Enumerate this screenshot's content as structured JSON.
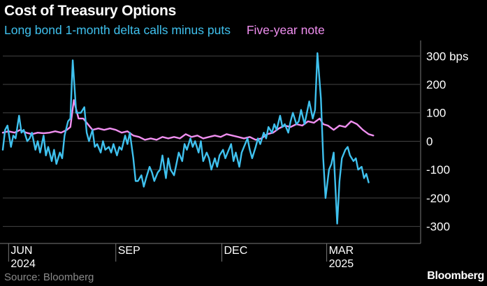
{
  "title": "Cost of Treasury Options",
  "source": "Source: Bloomberg",
  "brand": "Bloomberg",
  "colors": {
    "background": "#000000",
    "long_bond": "#3fc1ee",
    "five_year": "#f08ff0",
    "grid": "#444444",
    "text": "#ffffff",
    "muted": "#8a8a8a"
  },
  "chart_data": {
    "type": "line",
    "title": "Cost of Treasury Options",
    "xlabel": "",
    "ylabel": "",
    "unit": "bps",
    "xlim": [
      "2024-05-27",
      "2025-05-20"
    ],
    "ylim": [
      -350,
      335
    ],
    "yticks": [
      300,
      200,
      100,
      0,
      -100,
      -200,
      -300
    ],
    "ytick_labels": [
      "300 bps",
      "200",
      "100",
      "0",
      "-100",
      "-200",
      "-300"
    ],
    "xticks": [
      {
        "date": "2024-06-01",
        "label": "JUN",
        "sublabel": "2024"
      },
      {
        "date": "2024-09-01",
        "label": "SEP",
        "sublabel": ""
      },
      {
        "date": "2024-12-01",
        "label": "DEC",
        "sublabel": ""
      },
      {
        "date": "2025-03-01",
        "label": "MAR",
        "sublabel": "2025"
      }
    ],
    "grid": "horizontal",
    "legend": "top",
    "series": [
      {
        "name": "Long bond 1-month delta calls minus puts",
        "color": "#3fc1ee",
        "points": [
          [
            "2024-05-27",
            -30
          ],
          [
            "2024-05-29",
            40
          ],
          [
            "2024-05-31",
            55
          ],
          [
            "2024-06-03",
            -20
          ],
          [
            "2024-06-05",
            20
          ],
          [
            "2024-06-07",
            10
          ],
          [
            "2024-06-10",
            90
          ],
          [
            "2024-06-12",
            30
          ],
          [
            "2024-06-14",
            40
          ],
          [
            "2024-06-17",
            0
          ],
          [
            "2024-06-19",
            10
          ],
          [
            "2024-06-21",
            30
          ],
          [
            "2024-06-24",
            -30
          ],
          [
            "2024-06-26",
            0
          ],
          [
            "2024-06-28",
            -40
          ],
          [
            "2024-07-01",
            20
          ],
          [
            "2024-07-03",
            -50
          ],
          [
            "2024-07-05",
            -20
          ],
          [
            "2024-07-08",
            -70
          ],
          [
            "2024-07-10",
            -30
          ],
          [
            "2024-07-12",
            -80
          ],
          [
            "2024-07-15",
            -40
          ],
          [
            "2024-07-17",
            -60
          ],
          [
            "2024-07-19",
            20
          ],
          [
            "2024-07-22",
            70
          ],
          [
            "2024-07-24",
            80
          ],
          [
            "2024-07-26",
            285
          ],
          [
            "2024-07-29",
            100
          ],
          [
            "2024-07-31",
            100
          ],
          [
            "2024-08-02",
            100
          ],
          [
            "2024-08-05",
            120
          ],
          [
            "2024-08-07",
            30
          ],
          [
            "2024-08-09",
            0
          ],
          [
            "2024-08-12",
            40
          ],
          [
            "2024-08-14",
            -20
          ],
          [
            "2024-08-16",
            -10
          ],
          [
            "2024-08-19",
            -40
          ],
          [
            "2024-08-21",
            0
          ],
          [
            "2024-08-23",
            -30
          ],
          [
            "2024-08-26",
            -20
          ],
          [
            "2024-08-28",
            -40
          ],
          [
            "2024-08-30",
            -10
          ],
          [
            "2024-09-02",
            -50
          ],
          [
            "2024-09-04",
            -20
          ],
          [
            "2024-09-06",
            -30
          ],
          [
            "2024-09-09",
            20
          ],
          [
            "2024-09-11",
            -10
          ],
          [
            "2024-09-13",
            30
          ],
          [
            "2024-09-16",
            -60
          ],
          [
            "2024-09-18",
            -140
          ],
          [
            "2024-09-20",
            -140
          ],
          [
            "2024-09-23",
            -120
          ],
          [
            "2024-09-25",
            -160
          ],
          [
            "2024-09-27",
            -130
          ],
          [
            "2024-09-30",
            -90
          ],
          [
            "2024-10-02",
            -110
          ],
          [
            "2024-10-04",
            -140
          ],
          [
            "2024-10-07",
            -110
          ],
          [
            "2024-10-09",
            -100
          ],
          [
            "2024-10-11",
            -50
          ],
          [
            "2024-10-14",
            -130
          ],
          [
            "2024-10-16",
            -60
          ],
          [
            "2024-10-18",
            -100
          ],
          [
            "2024-10-21",
            -120
          ],
          [
            "2024-10-23",
            -80
          ],
          [
            "2024-10-25",
            -40
          ],
          [
            "2024-10-28",
            -70
          ],
          [
            "2024-10-30",
            -10
          ],
          [
            "2024-11-01",
            -30
          ],
          [
            "2024-11-04",
            10
          ],
          [
            "2024-11-06",
            -20
          ],
          [
            "2024-11-08",
            0
          ],
          [
            "2024-11-11",
            -40
          ],
          [
            "2024-11-13",
            0
          ],
          [
            "2024-11-15",
            -70
          ],
          [
            "2024-11-18",
            -40
          ],
          [
            "2024-11-20",
            -60
          ],
          [
            "2024-11-22",
            -100
          ],
          [
            "2024-11-25",
            -60
          ],
          [
            "2024-11-27",
            -90
          ],
          [
            "2024-11-29",
            -50
          ],
          [
            "2024-12-02",
            -30
          ],
          [
            "2024-12-04",
            -60
          ],
          [
            "2024-12-06",
            -40
          ],
          [
            "2024-12-09",
            -10
          ],
          [
            "2024-12-11",
            -70
          ],
          [
            "2024-12-13",
            -40
          ],
          [
            "2024-12-16",
            -90
          ],
          [
            "2024-12-18",
            -40
          ],
          [
            "2024-12-20",
            -20
          ],
          [
            "2024-12-23",
            10
          ],
          [
            "2024-12-25",
            -30
          ],
          [
            "2024-12-27",
            -60
          ],
          [
            "2024-12-30",
            -20
          ],
          [
            "2025-01-01",
            10
          ],
          [
            "2025-01-03",
            -10
          ],
          [
            "2025-01-06",
            30
          ],
          [
            "2025-01-08",
            10
          ],
          [
            "2025-01-10",
            50
          ],
          [
            "2025-01-13",
            30
          ],
          [
            "2025-01-15",
            60
          ],
          [
            "2025-01-17",
            40
          ],
          [
            "2025-01-20",
            90
          ],
          [
            "2025-01-22",
            50
          ],
          [
            "2025-01-24",
            60
          ],
          [
            "2025-01-27",
            30
          ],
          [
            "2025-01-29",
            70
          ],
          [
            "2025-01-31",
            100
          ],
          [
            "2025-02-03",
            60
          ],
          [
            "2025-02-05",
            70
          ],
          [
            "2025-02-07",
            110
          ],
          [
            "2025-02-10",
            60
          ],
          [
            "2025-02-12",
            100
          ],
          [
            "2025-02-14",
            140
          ],
          [
            "2025-02-17",
            80
          ],
          [
            "2025-02-19",
            110
          ],
          [
            "2025-02-21",
            310
          ],
          [
            "2025-02-24",
            150
          ],
          [
            "2025-02-26",
            -60
          ],
          [
            "2025-02-28",
            -200
          ],
          [
            "2025-03-03",
            -100
          ],
          [
            "2025-03-05",
            -80
          ],
          [
            "2025-03-07",
            -40
          ],
          [
            "2025-03-10",
            -290
          ],
          [
            "2025-03-12",
            -140
          ],
          [
            "2025-03-14",
            -60
          ],
          [
            "2025-03-17",
            -30
          ],
          [
            "2025-03-19",
            -20
          ],
          [
            "2025-03-21",
            -50
          ],
          [
            "2025-03-24",
            -70
          ],
          [
            "2025-03-26",
            -60
          ],
          [
            "2025-03-28",
            -100
          ],
          [
            "2025-03-31",
            -90
          ],
          [
            "2025-04-02",
            -130
          ],
          [
            "2025-04-04",
            -115
          ],
          [
            "2025-04-06",
            -145
          ]
        ]
      },
      {
        "name": "Five-year note",
        "color": "#f08ff0",
        "points": [
          [
            "2024-05-27",
            30
          ],
          [
            "2024-06-01",
            35
          ],
          [
            "2024-06-06",
            30
          ],
          [
            "2024-06-11",
            40
          ],
          [
            "2024-06-16",
            30
          ],
          [
            "2024-06-21",
            25
          ],
          [
            "2024-06-26",
            30
          ],
          [
            "2024-07-01",
            28
          ],
          [
            "2024-07-06",
            30
          ],
          [
            "2024-07-11",
            35
          ],
          [
            "2024-07-16",
            30
          ],
          [
            "2024-07-21",
            40
          ],
          [
            "2024-07-24",
            50
          ],
          [
            "2024-07-27",
            145
          ],
          [
            "2024-07-31",
            80
          ],
          [
            "2024-08-04",
            80
          ],
          [
            "2024-08-08",
            60
          ],
          [
            "2024-08-12",
            40
          ],
          [
            "2024-08-17",
            45
          ],
          [
            "2024-08-22",
            40
          ],
          [
            "2024-08-27",
            45
          ],
          [
            "2024-09-01",
            40
          ],
          [
            "2024-09-06",
            30
          ],
          [
            "2024-09-11",
            35
          ],
          [
            "2024-09-16",
            20
          ],
          [
            "2024-09-21",
            15
          ],
          [
            "2024-09-26",
            5
          ],
          [
            "2024-10-01",
            10
          ],
          [
            "2024-10-06",
            5
          ],
          [
            "2024-10-11",
            15
          ],
          [
            "2024-10-16",
            10
          ],
          [
            "2024-10-21",
            15
          ],
          [
            "2024-10-26",
            10
          ],
          [
            "2024-10-31",
            25
          ],
          [
            "2024-11-05",
            15
          ],
          [
            "2024-11-10",
            20
          ],
          [
            "2024-11-15",
            10
          ],
          [
            "2024-11-20",
            15
          ],
          [
            "2024-11-25",
            20
          ],
          [
            "2024-11-30",
            15
          ],
          [
            "2024-12-05",
            25
          ],
          [
            "2024-12-10",
            20
          ],
          [
            "2024-12-15",
            15
          ],
          [
            "2024-12-20",
            10
          ],
          [
            "2024-12-25",
            15
          ],
          [
            "2024-12-30",
            5
          ],
          [
            "2025-01-04",
            10
          ],
          [
            "2025-01-09",
            25
          ],
          [
            "2025-01-14",
            30
          ],
          [
            "2025-01-19",
            45
          ],
          [
            "2025-01-24",
            55
          ],
          [
            "2025-01-29",
            50
          ],
          [
            "2025-02-03",
            60
          ],
          [
            "2025-02-08",
            55
          ],
          [
            "2025-02-13",
            70
          ],
          [
            "2025-02-18",
            65
          ],
          [
            "2025-02-23",
            80
          ],
          [
            "2025-02-26",
            60
          ],
          [
            "2025-03-02",
            55
          ],
          [
            "2025-03-07",
            40
          ],
          [
            "2025-03-12",
            55
          ],
          [
            "2025-03-17",
            50
          ],
          [
            "2025-03-22",
            70
          ],
          [
            "2025-03-27",
            60
          ],
          [
            "2025-04-01",
            40
          ],
          [
            "2025-04-06",
            25
          ],
          [
            "2025-04-10",
            20
          ]
        ]
      }
    ]
  }
}
